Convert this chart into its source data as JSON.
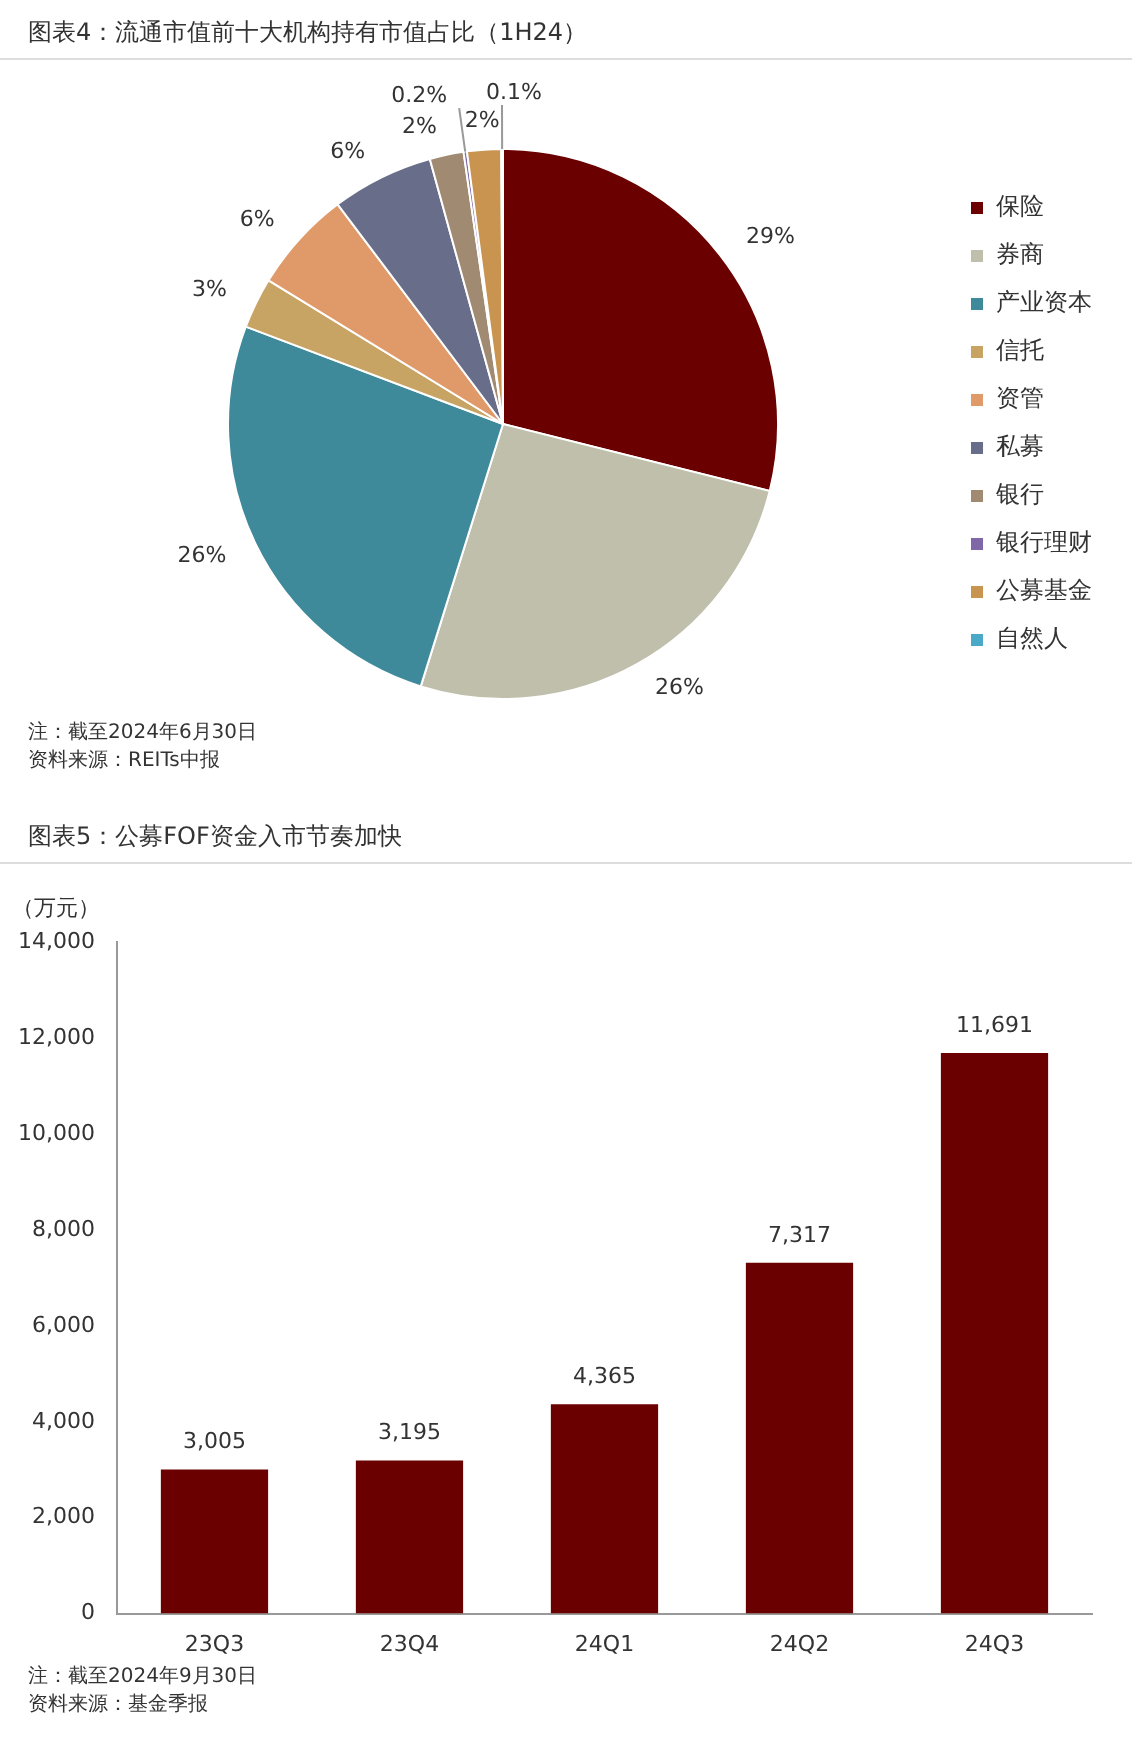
{
  "chart_data": [
    {
      "type": "pie",
      "title": "图表4：流通市值前十大机构持有市值占比（1H24）",
      "categories": [
        "保险",
        "券商",
        "产业资本",
        "信托",
        "资管",
        "私募",
        "银行",
        "银行理财",
        "公募基金",
        "自然人"
      ],
      "values": [
        29,
        26,
        26,
        3,
        6,
        6,
        2,
        0.2,
        2,
        0.1
      ],
      "value_labels": [
        "29%",
        "26%",
        "26%",
        "3%",
        "6%",
        "6%",
        "2%",
        "0.2%",
        "2%",
        "0.1%"
      ],
      "colors": [
        "#6b0000",
        "#c0bfac",
        "#3f8a9a",
        "#c8a464",
        "#e09a6a",
        "#686e8a",
        "#a08a72",
        "#8068a8",
        "#c89450",
        "#4aa8c8"
      ],
      "legend": "right",
      "annotations": [
        "注：截至2024年6月30日",
        "资料来源：REITs中报"
      ]
    },
    {
      "type": "bar",
      "title": "图表5：公募FOF资金入市节奏加快",
      "ylabel": "（万元）",
      "categories": [
        "23Q3",
        "23Q4",
        "24Q1",
        "24Q2",
        "24Q3"
      ],
      "values": [
        3005,
        3195,
        4365,
        7317,
        11691
      ],
      "value_labels": [
        "3,005",
        "3,195",
        "4,365",
        "7,317",
        "11,691"
      ],
      "color": "#6b0000",
      "ylim": [
        0,
        14000
      ],
      "yticks": [
        {
          "value": 0,
          "label": "0"
        },
        {
          "value": 2000,
          "label": "2,000"
        },
        {
          "value": 4000,
          "label": "4,000"
        },
        {
          "value": 6000,
          "label": "6,000"
        },
        {
          "value": 8000,
          "label": "8,000"
        },
        {
          "value": 10000,
          "label": "10,000"
        },
        {
          "value": 12000,
          "label": "12,000"
        },
        {
          "value": 14000,
          "label": "14,000"
        }
      ],
      "grid": false,
      "legend": false,
      "annotations": [
        "注：截至2024年9月30日",
        "资料来源：基金季报"
      ]
    }
  ]
}
